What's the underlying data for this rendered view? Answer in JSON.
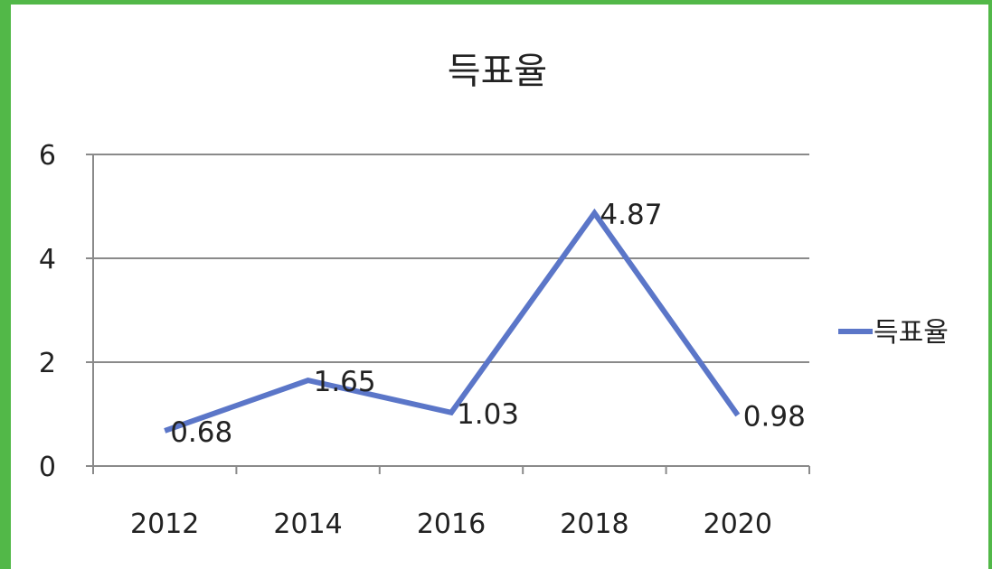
{
  "chart_data": {
    "type": "line",
    "title": "득표율",
    "xlabel": "",
    "ylabel": "",
    "categories": [
      "2012",
      "2014",
      "2016",
      "2018",
      "2020"
    ],
    "series": [
      {
        "name": "득표율",
        "values": [
          0.68,
          1.65,
          1.03,
          4.87,
          0.98
        ],
        "labels": [
          "0.68",
          "1.65",
          "1.03",
          "4.87",
          "0.98"
        ],
        "color": "#5b76c8"
      }
    ],
    "ylim": [
      0,
      6
    ],
    "yticks": [
      "0",
      "2",
      "4",
      "6"
    ],
    "grid": true,
    "legend": "right"
  }
}
